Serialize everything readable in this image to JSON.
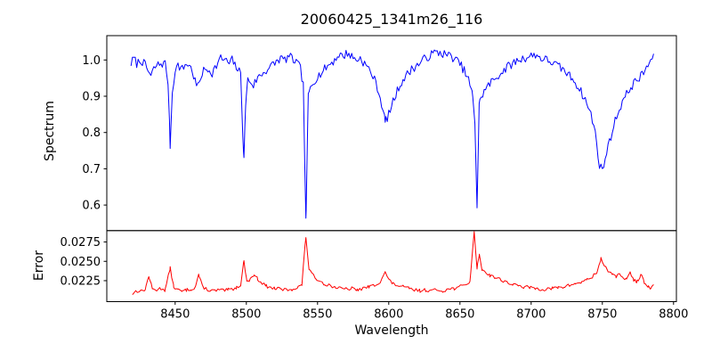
{
  "chart_data": {
    "type": "line",
    "title": "20060425_1341m26_116",
    "xlabel": "Wavelength",
    "xlim": [
      8402,
      8802
    ],
    "x_ticks": [
      8450,
      8500,
      8550,
      8600,
      8650,
      8700,
      8750,
      8800
    ],
    "background": "#ffffff",
    "text_color": "#000000",
    "grid": false,
    "legend": "none",
    "panels": [
      {
        "name": "spectrum",
        "ylabel": "Spectrum",
        "color": "#0000ff",
        "ylim": [
          0.5295,
          1.0671
        ],
        "y_ticks": [
          0.6,
          0.7,
          0.8,
          0.9,
          1.0
        ],
        "tick_decimals": 1,
        "noise": 0.012,
        "noise_step": 1.0,
        "seed": 7,
        "anchors": [
          [
            8419,
            0.99
          ],
          [
            8421,
            1.005
          ],
          [
            8423,
            0.99
          ],
          [
            8426,
            1.0
          ],
          [
            8429,
            0.985
          ],
          [
            8431,
            0.97
          ],
          [
            8433,
            0.955
          ],
          [
            8435,
            0.975
          ],
          [
            8437,
            0.985
          ],
          [
            8440,
            0.99
          ],
          [
            8443,
            0.99
          ],
          [
            8445,
            0.94
          ],
          [
            8446.5,
            0.765
          ],
          [
            8448,
            0.91
          ],
          [
            8450,
            0.975
          ],
          [
            8452,
            0.985
          ],
          [
            8455,
            0.975
          ],
          [
            8458,
            0.99
          ],
          [
            8460,
            0.985
          ],
          [
            8462,
            0.97
          ],
          [
            8464.5,
            0.935
          ],
          [
            8466,
            0.925
          ],
          [
            8468,
            0.955
          ],
          [
            8470,
            0.97
          ],
          [
            8473,
            0.975
          ],
          [
            8476,
            0.965
          ],
          [
            8479,
            0.985
          ],
          [
            8482,
            1.005
          ],
          [
            8485,
            1.0
          ],
          [
            8488,
            0.99
          ],
          [
            8490,
            1.0
          ],
          [
            8492,
            0.985
          ],
          [
            8494,
            0.975
          ],
          [
            8496,
            0.96
          ],
          [
            8497.5,
            0.8
          ],
          [
            8498.3,
            0.723
          ],
          [
            8499.5,
            0.88
          ],
          [
            8501,
            0.945
          ],
          [
            8503,
            0.94
          ],
          [
            8505,
            0.93
          ],
          [
            8507,
            0.945
          ],
          [
            8509,
            0.955
          ],
          [
            8512,
            0.965
          ],
          [
            8515,
            0.975
          ],
          [
            8518,
            0.985
          ],
          [
            8521,
            0.995
          ],
          [
            8524,
            1.005
          ],
          [
            8527,
            1.0
          ],
          [
            8530,
            1.01
          ],
          [
            8533,
            1.0
          ],
          [
            8536,
            0.99
          ],
          [
            8538,
            0.975
          ],
          [
            8540,
            0.93
          ],
          [
            8541.8,
            0.552
          ],
          [
            8543.5,
            0.9
          ],
          [
            8545,
            0.925
          ],
          [
            8547,
            0.94
          ],
          [
            8550,
            0.955
          ],
          [
            8553,
            0.965
          ],
          [
            8556,
            0.98
          ],
          [
            8559,
            0.99
          ],
          [
            8562,
            1.0
          ],
          [
            8565,
            1.015
          ],
          [
            8568,
            1.01
          ],
          [
            8571,
            1.02
          ],
          [
            8574,
            1.01
          ],
          [
            8577,
            1.0
          ],
          [
            8580,
            1.005
          ],
          [
            8583,
            0.99
          ],
          [
            8586,
            0.975
          ],
          [
            8589,
            0.955
          ],
          [
            8592,
            0.925
          ],
          [
            8595,
            0.88
          ],
          [
            8597.5,
            0.83
          ],
          [
            8600,
            0.85
          ],
          [
            8603,
            0.885
          ],
          [
            8606,
            0.915
          ],
          [
            8609,
            0.94
          ],
          [
            8612,
            0.955
          ],
          [
            8616,
            0.975
          ],
          [
            8620,
            0.985
          ],
          [
            8624,
            1.0
          ],
          [
            8628,
            1.01
          ],
          [
            8632,
            1.02
          ],
          [
            8636,
            1.02
          ],
          [
            8640,
            1.015
          ],
          [
            8644,
            1.01
          ],
          [
            8647,
            1.0
          ],
          [
            8650,
            0.99
          ],
          [
            8653,
            0.97
          ],
          [
            8656,
            0.945
          ],
          [
            8658.5,
            0.91
          ],
          [
            8660.5,
            0.83
          ],
          [
            8662,
            0.595
          ],
          [
            8663.5,
            0.875
          ],
          [
            8665,
            0.9
          ],
          [
            8668,
            0.92
          ],
          [
            8671,
            0.935
          ],
          [
            8675,
            0.95
          ],
          [
            8679,
            0.965
          ],
          [
            8683,
            0.98
          ],
          [
            8687,
            0.99
          ],
          [
            8691,
            1.0
          ],
          [
            8695,
            1.005
          ],
          [
            8699,
            1.01
          ],
          [
            8703,
            1.015
          ],
          [
            8707,
            1.005
          ],
          [
            8711,
            1.0
          ],
          [
            8714,
            0.995
          ],
          [
            8718,
            0.985
          ],
          [
            8722,
            0.975
          ],
          [
            8726,
            0.96
          ],
          [
            8730,
            0.945
          ],
          [
            8734,
            0.92
          ],
          [
            8738,
            0.89
          ],
          [
            8742,
            0.85
          ],
          [
            8745,
            0.8
          ],
          [
            8748,
            0.71
          ],
          [
            8750,
            0.695
          ],
          [
            8752,
            0.73
          ],
          [
            8755,
            0.775
          ],
          [
            8758,
            0.82
          ],
          [
            8761,
            0.855
          ],
          [
            8764,
            0.885
          ],
          [
            8767,
            0.905
          ],
          [
            8770,
            0.925
          ],
          [
            8773,
            0.94
          ],
          [
            8776,
            0.95
          ],
          [
            8779,
            0.965
          ],
          [
            8782,
            0.985
          ],
          [
            8784,
            1.0
          ],
          [
            8786,
            1.005
          ]
        ]
      },
      {
        "name": "error",
        "ylabel": "Error",
        "color": "#ff0000",
        "ylim": [
          0.01979,
          0.02897
        ],
        "y_ticks": [
          0.0225,
          0.025,
          0.0275
        ],
        "tick_decimals": 4,
        "noise": 0.00022,
        "noise_step": 1.2,
        "seed": 13,
        "anchors": [
          [
            8420,
            0.0208
          ],
          [
            8423,
            0.0212
          ],
          [
            8426,
            0.0211
          ],
          [
            8429,
            0.0214
          ],
          [
            8431.5,
            0.0231
          ],
          [
            8434,
            0.0214
          ],
          [
            8437,
            0.0213
          ],
          [
            8440,
            0.0215
          ],
          [
            8443,
            0.0213
          ],
          [
            8446.5,
            0.0241
          ],
          [
            8449,
            0.0217
          ],
          [
            8452,
            0.0213
          ],
          [
            8455,
            0.0211
          ],
          [
            8458,
            0.0213
          ],
          [
            8461,
            0.0214
          ],
          [
            8464,
            0.0216
          ],
          [
            8466.5,
            0.0233
          ],
          [
            8469,
            0.0218
          ],
          [
            8472,
            0.0214
          ],
          [
            8475,
            0.0212
          ],
          [
            8478,
            0.0212
          ],
          [
            8481,
            0.0213
          ],
          [
            8484,
            0.0212
          ],
          [
            8487,
            0.0213
          ],
          [
            8490,
            0.0214
          ],
          [
            8493,
            0.0216
          ],
          [
            8496,
            0.022
          ],
          [
            8498.3,
            0.0251
          ],
          [
            8500,
            0.0227
          ],
          [
            8502,
            0.0225
          ],
          [
            8505.5,
            0.0233
          ],
          [
            8508,
            0.0227
          ],
          [
            8511,
            0.0222
          ],
          [
            8514,
            0.0218
          ],
          [
            8517,
            0.0216
          ],
          [
            8520,
            0.0215
          ],
          [
            8524,
            0.0214
          ],
          [
            8528,
            0.0213
          ],
          [
            8532,
            0.0214
          ],
          [
            8536,
            0.0216
          ],
          [
            8539,
            0.022
          ],
          [
            8541.8,
            0.0282
          ],
          [
            8544,
            0.024
          ],
          [
            8546,
            0.0233
          ],
          [
            8549,
            0.0228
          ],
          [
            8552,
            0.0224
          ],
          [
            8555,
            0.0221
          ],
          [
            8558,
            0.0219
          ],
          [
            8562,
            0.0217
          ],
          [
            8566,
            0.0215
          ],
          [
            8570,
            0.0214
          ],
          [
            8574,
            0.0215
          ],
          [
            8578,
            0.0213
          ],
          [
            8582,
            0.0215
          ],
          [
            8586,
            0.0217
          ],
          [
            8590,
            0.0219
          ],
          [
            8594,
            0.0224
          ],
          [
            8597.5,
            0.0236
          ],
          [
            8600,
            0.0226
          ],
          [
            8603,
            0.0221
          ],
          [
            8606,
            0.0219
          ],
          [
            8610,
            0.0217
          ],
          [
            8614,
            0.0215
          ],
          [
            8618,
            0.0213
          ],
          [
            8622,
            0.0212
          ],
          [
            8626,
            0.0213
          ],
          [
            8630,
            0.0212
          ],
          [
            8634,
            0.0213
          ],
          [
            8638,
            0.0212
          ],
          [
            8642,
            0.0214
          ],
          [
            8646,
            0.0215
          ],
          [
            8650,
            0.0217
          ],
          [
            8654,
            0.022
          ],
          [
            8657,
            0.0224
          ],
          [
            8660,
            0.0287
          ],
          [
            8662,
            0.0242
          ],
          [
            8663.5,
            0.0258
          ],
          [
            8665.5,
            0.024
          ],
          [
            8668,
            0.0236
          ],
          [
            8671,
            0.0232
          ],
          [
            8675,
            0.0229
          ],
          [
            8679,
            0.0226
          ],
          [
            8683,
            0.0223
          ],
          [
            8687,
            0.022
          ],
          [
            8691,
            0.0218
          ],
          [
            8695,
            0.0217
          ],
          [
            8699,
            0.0216
          ],
          [
            8703,
            0.0215
          ],
          [
            8707,
            0.0214
          ],
          [
            8711,
            0.0214
          ],
          [
            8715,
            0.0215
          ],
          [
            8719,
            0.0216
          ],
          [
            8723,
            0.0217
          ],
          [
            8727,
            0.0219
          ],
          [
            8731,
            0.0221
          ],
          [
            8735,
            0.0223
          ],
          [
            8739,
            0.0226
          ],
          [
            8743,
            0.023
          ],
          [
            8746,
            0.0235
          ],
          [
            8749,
            0.0253
          ],
          [
            8751.5,
            0.0245
          ],
          [
            8754,
            0.0238
          ],
          [
            8757,
            0.0232
          ],
          [
            8759.5,
            0.023
          ],
          [
            8762,
            0.0236
          ],
          [
            8764.5,
            0.0228
          ],
          [
            8767,
            0.0226
          ],
          [
            8769.5,
            0.0237
          ],
          [
            8772,
            0.0225
          ],
          [
            8774.5,
            0.0224
          ],
          [
            8777,
            0.0233
          ],
          [
            8779.5,
            0.0222
          ],
          [
            8782,
            0.0217
          ],
          [
            8784,
            0.0215
          ],
          [
            8786,
            0.0218
          ]
        ]
      }
    ]
  }
}
